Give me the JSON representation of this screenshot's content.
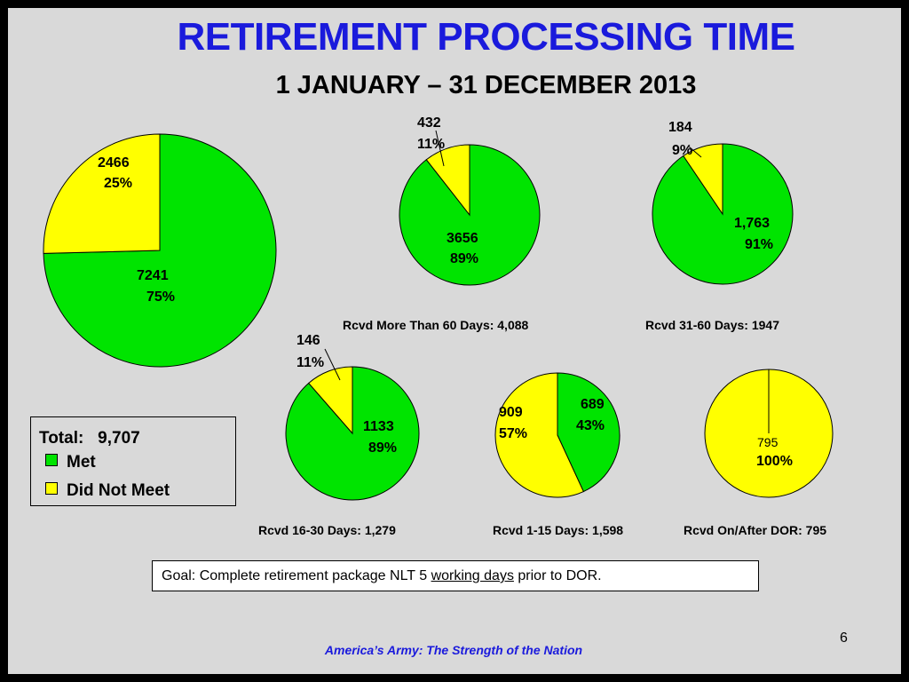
{
  "title": "RETIREMENT PROCESSING TIME",
  "subtitle": "1 JANUARY – 31 DECEMBER 2013",
  "colors": {
    "met": "#00e400",
    "not_met": "#ffff00",
    "title": "#1a1adc"
  },
  "legend": {
    "total_label": "Total:",
    "total_value": "9,707",
    "items": [
      {
        "label": "Met",
        "color": "#00e400"
      },
      {
        "label": "Did Not Meet",
        "color": "#ffff00"
      }
    ]
  },
  "goal": {
    "prefix": "Goal: Complete retirement package NLT 5 ",
    "underlined": "working days",
    "suffix": " prior to DOR."
  },
  "footer": "America’s Army: The Strength of the Nation",
  "page_number": "6",
  "chart_data": [
    {
      "type": "pie",
      "id": "total",
      "title": "",
      "slices": [
        {
          "name": "Met",
          "value": 7241,
          "label": "7241",
          "pct": "75%"
        },
        {
          "name": "Did Not Meet",
          "value": 2466,
          "label": "2466",
          "pct": "25%"
        }
      ]
    },
    {
      "type": "pie",
      "id": "gt60",
      "title": "Rcvd More Than 60 Days: 4,088",
      "slices": [
        {
          "name": "Met",
          "value": 3656,
          "label": "3656",
          "pct": "89%"
        },
        {
          "name": "Did Not Meet",
          "value": 432,
          "label": "432",
          "pct": "11%"
        }
      ]
    },
    {
      "type": "pie",
      "id": "d31_60",
      "title": "Rcvd 31-60 Days: 1947",
      "slices": [
        {
          "name": "Met",
          "value": 1763,
          "label": "1,763",
          "pct": "91%"
        },
        {
          "name": "Did Not Meet",
          "value": 184,
          "label": "184",
          "pct": "9%"
        }
      ]
    },
    {
      "type": "pie",
      "id": "d16_30",
      "title": "Rcvd 16-30 Days: 1,279",
      "slices": [
        {
          "name": "Met",
          "value": 1133,
          "label": "1133",
          "pct": "89%"
        },
        {
          "name": "Did Not Meet",
          "value": 146,
          "label": "146",
          "pct": "11%"
        }
      ]
    },
    {
      "type": "pie",
      "id": "d1_15",
      "title": "Rcvd 1-15 Days: 1,598",
      "slices": [
        {
          "name": "Met",
          "value": 689,
          "label": "689",
          "pct": "43%"
        },
        {
          "name": "Did Not Meet",
          "value": 909,
          "label": "909",
          "pct": "57%"
        }
      ]
    },
    {
      "type": "pie",
      "id": "after_dor",
      "title": "Rcvd On/After DOR: 795",
      "slices": [
        {
          "name": "Met",
          "value": 0,
          "label": "",
          "pct": ""
        },
        {
          "name": "Did Not Meet",
          "value": 795,
          "label": "795",
          "pct": "100%"
        }
      ]
    }
  ]
}
